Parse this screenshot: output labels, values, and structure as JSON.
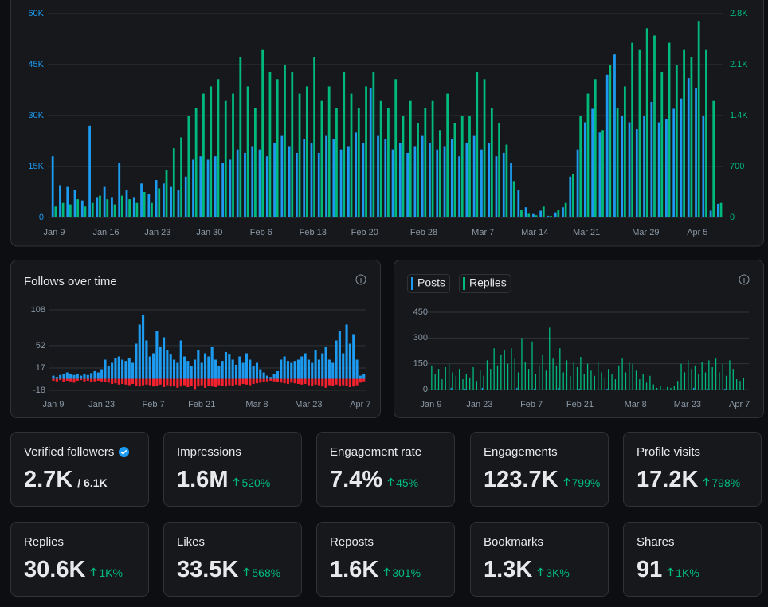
{
  "chart_data": [
    {
      "type": "bar",
      "categories": [
        "Jan 9",
        null,
        null,
        null,
        null,
        null,
        null,
        "Jan 16",
        null,
        null,
        null,
        null,
        null,
        null,
        "Jan 23",
        null,
        null,
        null,
        null,
        null,
        null,
        "Jan 30",
        null,
        null,
        null,
        null,
        null,
        null,
        "Feb 6",
        null,
        null,
        null,
        null,
        null,
        null,
        "Feb 13",
        null,
        null,
        null,
        null,
        null,
        null,
        "Feb 20",
        null,
        null,
        null,
        null,
        null,
        null,
        null,
        "Feb 28",
        null,
        null,
        null,
        null,
        null,
        null,
        null,
        "Mar 7",
        null,
        null,
        null,
        null,
        null,
        null,
        "Mar 14",
        null,
        null,
        null,
        null,
        null,
        null,
        "Mar 21",
        null,
        null,
        null,
        null,
        null,
        null,
        null,
        "Mar 29",
        null,
        null,
        null,
        null,
        null,
        null,
        "Apr 5",
        null,
        null,
        null
      ],
      "series": [
        {
          "color": "#1d9bf0",
          "values": [
            18000,
            9500,
            9000,
            8000,
            5000,
            27000,
            6000,
            9000,
            6000,
            16000,
            8000,
            6000,
            10000,
            7000,
            11000,
            10000,
            9000,
            8000,
            12000,
            17000,
            18000,
            17000,
            18000,
            16000,
            17000,
            20000,
            19000,
            21000,
            20000,
            18000,
            22000,
            24000,
            21000,
            19000,
            23000,
            22000,
            19000,
            24000,
            23000,
            20000,
            21000,
            25000,
            22000,
            38000,
            24000,
            23000,
            20000,
            22000,
            19000,
            21000,
            24000,
            22000,
            20000,
            21000,
            23000,
            18000,
            22000,
            24000,
            20000,
            22000,
            18000,
            19000,
            16000,
            8000,
            3000,
            1000,
            2000,
            500,
            1500,
            3000,
            12000,
            20000,
            28000,
            32000,
            25000,
            42000,
            48000,
            30000,
            28000,
            26000,
            30000,
            34000,
            28000,
            29000,
            32000,
            35000,
            41000,
            38000,
            30000,
            2000,
            4000
          ]
        },
        {
          "color": "#00ba7c",
          "axis": "y2",
          "values": [
            150,
            200,
            180,
            250,
            150,
            200,
            300,
            250,
            180,
            300,
            250,
            200,
            350,
            200,
            400,
            650,
            950,
            1100,
            1400,
            1500,
            1700,
            1800,
            1900,
            1600,
            1700,
            2200,
            1800,
            1500,
            2300,
            2000,
            1900,
            2100,
            2000,
            1700,
            1800,
            2200,
            1600,
            1800,
            1500,
            2000,
            1700,
            1500,
            1800,
            2000,
            1600,
            1500,
            1900,
            1400,
            1600,
            1300,
            1500,
            1600,
            1200,
            1700,
            1300,
            1400,
            1400,
            2000,
            1900,
            1500,
            1300,
            1000,
            500,
            100,
            50,
            30,
            150,
            20,
            100,
            200,
            600,
            1400,
            1700,
            1900,
            1200,
            2100,
            1500,
            1800,
            2400,
            2300,
            2600,
            2500,
            2000,
            2400,
            2100,
            2300,
            2200,
            2700,
            2300,
            1600,
            200
          ]
        }
      ],
      "ylim": [
        0,
        60000
      ],
      "yticks": [
        0,
        {
          "value": 15000,
          "label": "15K"
        },
        {
          "value": 30000,
          "label": "30K"
        },
        {
          "value": 45000,
          "label": "45K"
        },
        {
          "value": 60000,
          "label": "60K"
        }
      ],
      "y2lim": [
        0,
        2800
      ],
      "y2ticks": [
        0,
        700,
        {
          "value": 1400,
          "label": "1.4K"
        },
        {
          "value": 2100,
          "label": "2.1K"
        },
        {
          "value": 2800,
          "label": "2.8K"
        }
      ],
      "grid": true
    },
    {
      "type": "bar",
      "title": "Follows over time",
      "categories": [
        "Jan 9",
        null,
        null,
        null,
        null,
        null,
        null,
        null,
        null,
        null,
        null,
        null,
        null,
        null,
        "Jan 23",
        null,
        null,
        null,
        null,
        null,
        null,
        null,
        null,
        null,
        null,
        null,
        null,
        null,
        null,
        "Feb 7",
        null,
        null,
        null,
        null,
        null,
        null,
        null,
        null,
        null,
        null,
        null,
        null,
        null,
        "Feb 21",
        null,
        null,
        null,
        null,
        null,
        null,
        null,
        null,
        null,
        null,
        null,
        null,
        null,
        null,
        null,
        "Mar 8",
        null,
        null,
        null,
        null,
        null,
        null,
        null,
        null,
        null,
        null,
        null,
        null,
        null,
        null,
        "Mar 23",
        null,
        null,
        null,
        null,
        null,
        null,
        null,
        null,
        null,
        null,
        null,
        null,
        null,
        null,
        "Apr 7",
        null
      ],
      "series": [
        {
          "color": "#1d9bf0",
          "values": [
            5,
            3,
            6,
            8,
            10,
            8,
            6,
            7,
            5,
            8,
            6,
            9,
            12,
            10,
            15,
            30,
            20,
            25,
            32,
            35,
            30,
            28,
            32,
            25,
            55,
            85,
            100,
            60,
            35,
            40,
            75,
            50,
            65,
            45,
            38,
            30,
            25,
            60,
            35,
            28,
            20,
            30,
            45,
            25,
            40,
            35,
            50,
            30,
            20,
            28,
            42,
            38,
            30,
            22,
            35,
            25,
            40,
            30,
            20,
            25,
            15,
            10,
            5,
            3,
            8,
            12,
            30,
            35,
            28,
            25,
            28,
            30,
            35,
            40,
            30,
            25,
            45,
            30,
            40,
            50,
            30,
            25,
            60,
            75,
            40,
            85,
            55,
            70,
            30,
            5,
            8
          ]
        },
        {
          "color": "#f4212e",
          "values": [
            -3,
            -4,
            -2,
            -5,
            -3,
            -4,
            -6,
            -3,
            -2,
            -4,
            -3,
            -5,
            -4,
            -3,
            -4,
            -5,
            -6,
            -8,
            -7,
            -9,
            -8,
            -9,
            -10,
            -8,
            -11,
            -12,
            -10,
            -9,
            -10,
            -12,
            -11,
            -9,
            -13,
            -10,
            -12,
            -11,
            -14,
            -12,
            -10,
            -13,
            -11,
            -16,
            -12,
            -10,
            -14,
            -11,
            -12,
            -13,
            -10,
            -11,
            -12,
            -10,
            -11,
            -9,
            -10,
            -8,
            -9,
            -10,
            -8,
            -7,
            -6,
            -5,
            -4,
            -3,
            -4,
            -5,
            -6,
            -7,
            -8,
            -6,
            -7,
            -8,
            -9,
            -8,
            -10,
            -11,
            -9,
            -10,
            -12,
            -14,
            -10,
            -11,
            -9,
            -12,
            -10,
            -11,
            -13,
            -12,
            -10,
            -6,
            -4
          ]
        }
      ],
      "ylim": [
        -20,
        110
      ],
      "yticks": [
        -18,
        17,
        52,
        108
      ],
      "grid": true
    },
    {
      "type": "bar",
      "categories": [
        "Jan 9",
        null,
        null,
        null,
        null,
        null,
        null,
        null,
        null,
        null,
        null,
        null,
        null,
        null,
        "Jan 23",
        null,
        null,
        null,
        null,
        null,
        null,
        null,
        null,
        null,
        null,
        null,
        null,
        null,
        null,
        "Feb 7",
        null,
        null,
        null,
        null,
        null,
        null,
        null,
        null,
        null,
        null,
        null,
        null,
        null,
        "Feb 21",
        null,
        null,
        null,
        null,
        null,
        null,
        null,
        null,
        null,
        null,
        null,
        null,
        null,
        null,
        null,
        "Mar 8",
        null,
        null,
        null,
        null,
        null,
        null,
        null,
        null,
        null,
        null,
        null,
        null,
        null,
        null,
        "Mar 23",
        null,
        null,
        null,
        null,
        null,
        null,
        null,
        null,
        null,
        null,
        null,
        null,
        null,
        null,
        "Apr 7",
        null
      ],
      "series": [
        {
          "name": "Posts",
          "color": "#1d9bf0",
          "values": [
            0,
            0,
            5,
            0,
            0,
            0,
            10,
            0,
            0,
            0,
            5,
            0,
            0,
            0,
            0,
            10,
            0,
            0,
            0,
            5,
            0,
            0,
            0,
            0,
            0,
            10,
            0,
            0,
            0,
            0,
            5,
            0,
            0,
            0,
            0,
            0,
            0,
            10,
            0,
            0,
            0,
            0,
            0,
            5,
            0,
            0,
            0,
            0,
            0,
            0,
            0,
            5,
            0,
            0,
            0,
            0,
            0,
            0,
            0,
            0,
            0,
            0,
            0,
            0,
            0,
            0,
            0,
            0,
            0,
            0,
            0,
            0,
            5,
            0,
            0,
            0,
            10,
            0,
            0,
            0,
            5,
            0,
            0,
            0,
            0,
            5,
            0,
            0,
            0,
            0,
            0
          ]
        },
        {
          "name": "Replies",
          "color": "#00ba7c",
          "values": [
            140,
            90,
            120,
            60,
            130,
            150,
            100,
            80,
            120,
            60,
            90,
            70,
            130,
            50,
            110,
            80,
            170,
            120,
            240,
            140,
            200,
            230,
            150,
            240,
            180,
            100,
            300,
            160,
            120,
            280,
            90,
            140,
            200,
            110,
            360,
            180,
            140,
            240,
            100,
            170,
            80,
            160,
            130,
            190,
            90,
            150,
            110,
            80,
            160,
            100,
            70,
            120,
            90,
            60,
            140,
            180,
            100,
            160,
            150,
            110,
            60,
            90,
            40,
            80,
            30,
            10,
            20,
            5,
            15,
            10,
            20,
            50,
            150,
            100,
            170,
            120,
            140,
            90,
            160,
            100,
            170,
            130,
            180,
            100,
            150,
            80,
            170,
            120,
            60,
            50,
            70
          ]
        }
      ],
      "ylim": [
        0,
        450
      ],
      "yticks": [
        0,
        150,
        300,
        450
      ],
      "grid": true,
      "legend": "top-left"
    }
  ],
  "cards": [
    {
      "label": "Verified followers",
      "value": "2.7K",
      "total": "/ 6.1K"
    },
    {
      "label": "Impressions",
      "value": "1.6M",
      "change": "520%"
    },
    {
      "label": "Engagement rate",
      "value": "7.4%",
      "change": "45%"
    },
    {
      "label": "Engagements",
      "value": "123.7K",
      "change": "799%"
    },
    {
      "label": "Profile visits",
      "value": "17.2K",
      "change": "798%"
    },
    {
      "label": "Replies",
      "value": "30.6K",
      "change": "1K%"
    },
    {
      "label": "Likes",
      "value": "33.5K",
      "change": "568%"
    },
    {
      "label": "Reposts",
      "value": "1.6K",
      "change": "301%"
    },
    {
      "label": "Bookmarks",
      "value": "1.3K",
      "change": "3K%"
    },
    {
      "label": "Shares",
      "value": "91",
      "change": "1K%"
    }
  ]
}
